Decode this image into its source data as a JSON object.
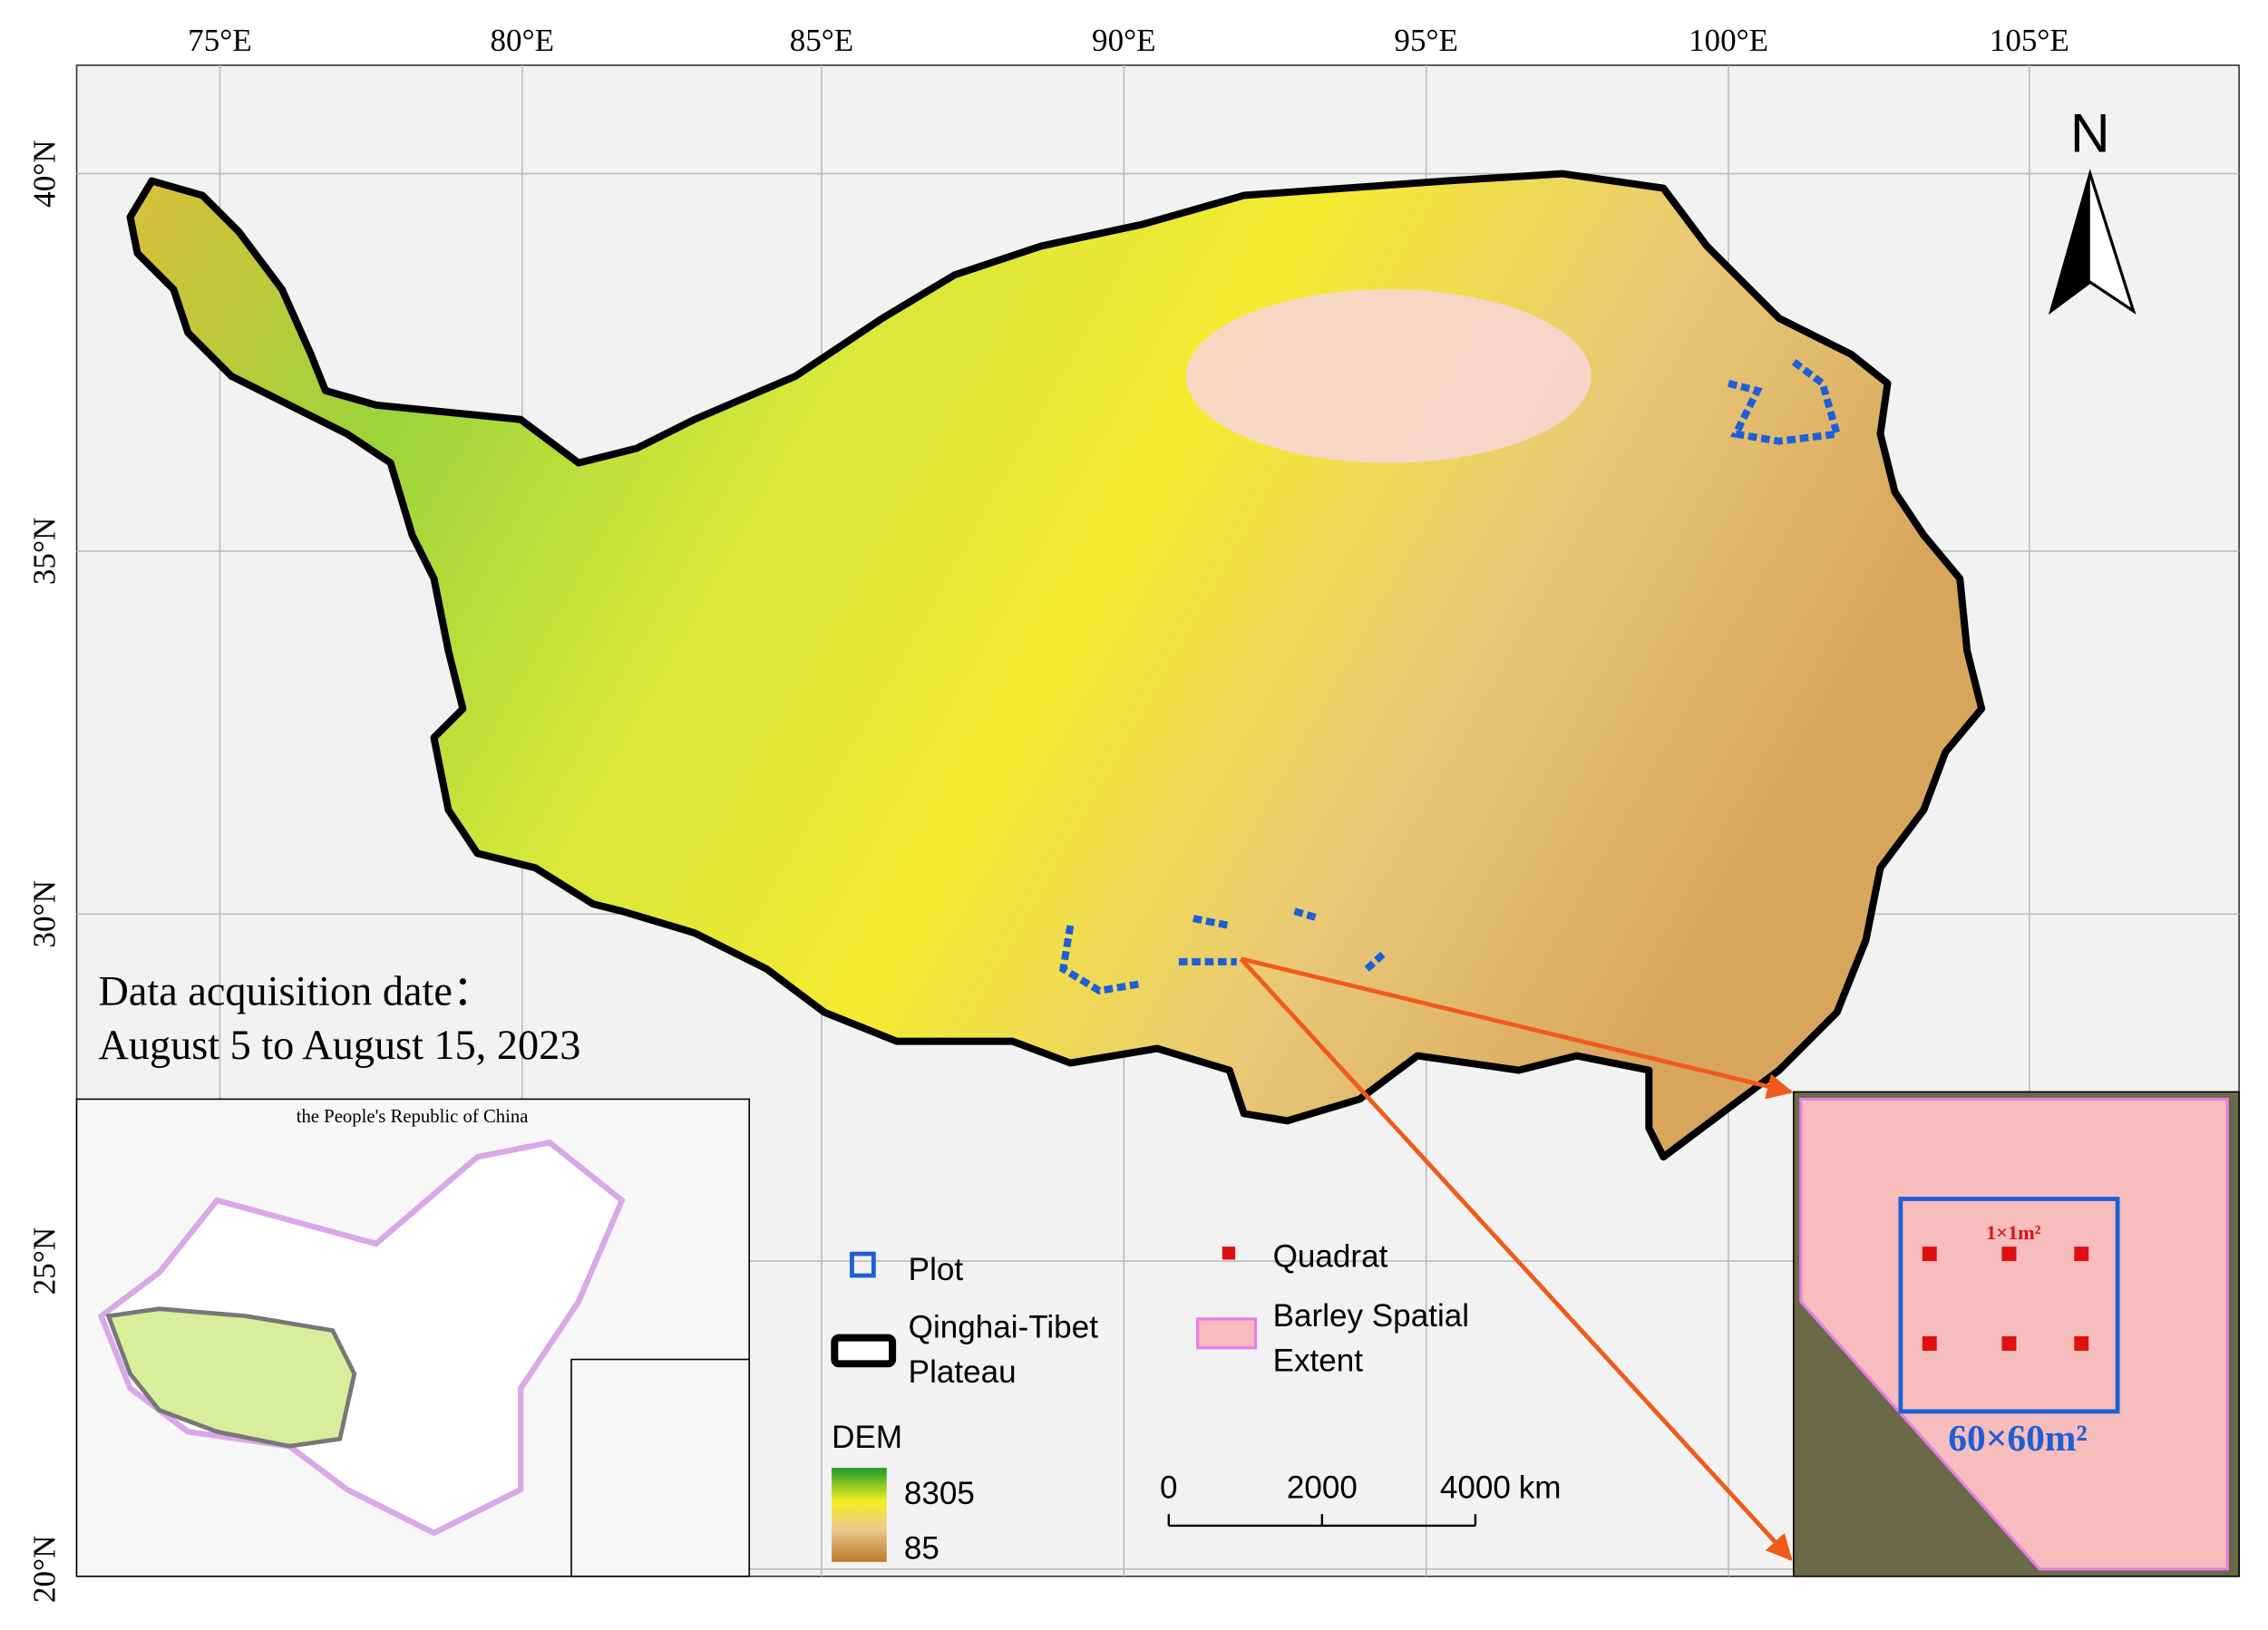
{
  "map": {
    "lon_labels": [
      "75°E",
      "80°E",
      "85°E",
      "90°E",
      "95°E",
      "100°E",
      "105°E"
    ],
    "lat_labels": [
      "40°N",
      "35°N",
      "30°N",
      "25°N",
      "20°N"
    ],
    "north": "N",
    "date_label": "Data acquisition date：",
    "date_range": "August 5 to August 15, 2023"
  },
  "inset_china": {
    "title": "the People's Republic of China"
  },
  "legend": {
    "plot": "Plot",
    "quadrat": "Quadrat",
    "plateau": [
      "Qinghai-Tibet",
      "Plateau"
    ],
    "barley": [
      "Barley Spatial",
      "Extent"
    ],
    "dem_title": "DEM",
    "dem_max": "8305",
    "dem_min": "85"
  },
  "scale_bar": {
    "ticks": [
      0,
      2000,
      4000
    ],
    "unit": "km"
  },
  "inset_plot": {
    "quadrat_size": "1×1m²",
    "plot_size": "60×60m²"
  }
}
